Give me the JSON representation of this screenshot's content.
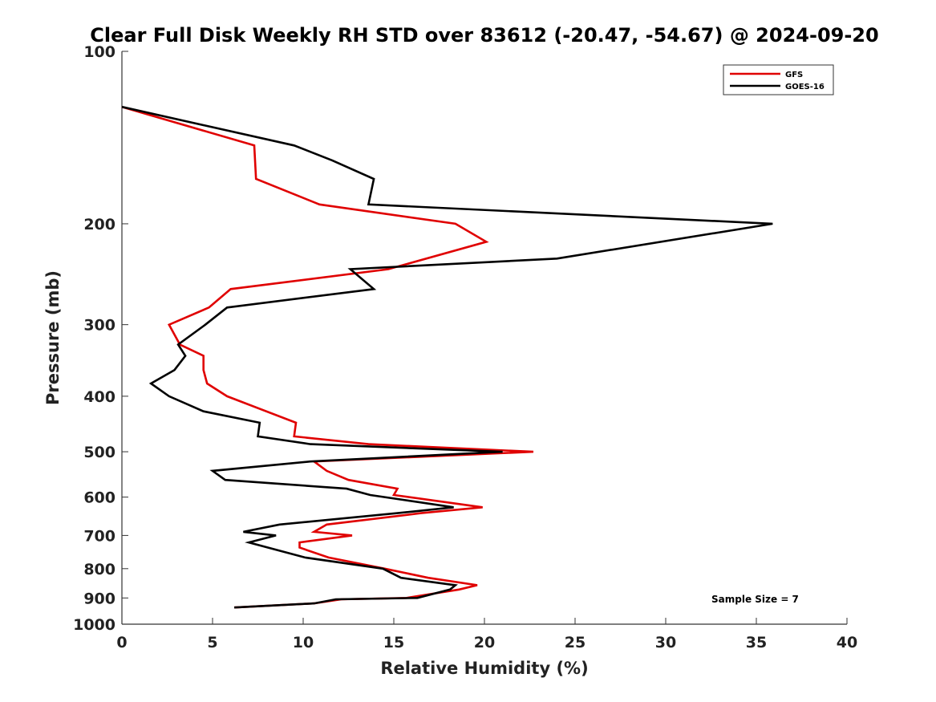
{
  "chart_data": {
    "type": "line",
    "title": "Clear Full Disk Weekly RH STD over 83612 (-20.47, -54.67) @ 2024-09-20",
    "xlabel": "Relative Humidity (%)",
    "ylabel": "Pressure (mb)",
    "xlim": [
      0,
      40
    ],
    "ylim": [
      100,
      1000
    ],
    "y_scale": "log",
    "y_reversed": true,
    "x_ticks": [
      "0",
      "5",
      "10",
      "15",
      "20",
      "25",
      "30",
      "35",
      "40"
    ],
    "y_ticks": [
      "100",
      "200",
      "300",
      "400",
      "500",
      "600",
      "700",
      "800",
      "900",
      "1000"
    ],
    "grid": false,
    "legend_position": "top-right",
    "annotation": "Sample Size = 7",
    "series": [
      {
        "name": "GFS",
        "color": "#e00000",
        "points": [
          [
            0.0,
            125
          ],
          [
            7.3,
            146
          ],
          [
            7.4,
            167
          ],
          [
            10.9,
            185
          ],
          [
            18.4,
            200
          ],
          [
            20.1,
            215
          ],
          [
            14.7,
            240
          ],
          [
            6.0,
            260
          ],
          [
            4.8,
            280
          ],
          [
            2.6,
            300
          ],
          [
            3.2,
            325
          ],
          [
            4.5,
            340
          ],
          [
            4.5,
            360
          ],
          [
            4.7,
            380
          ],
          [
            5.8,
            400
          ],
          [
            9.6,
            445
          ],
          [
            9.5,
            470
          ],
          [
            13.6,
            485
          ],
          [
            22.7,
            500
          ],
          [
            10.6,
            520
          ],
          [
            11.3,
            540
          ],
          [
            12.5,
            560
          ],
          [
            15.2,
            580
          ],
          [
            15.0,
            595
          ],
          [
            19.9,
            625
          ],
          [
            16.5,
            640
          ],
          [
            11.3,
            670
          ],
          [
            10.6,
            690
          ],
          [
            12.7,
            700
          ],
          [
            9.8,
            720
          ],
          [
            9.8,
            735
          ],
          [
            11.4,
            765
          ],
          [
            14.5,
            800
          ],
          [
            16.9,
            830
          ],
          [
            19.6,
            855
          ],
          [
            18.6,
            870
          ],
          [
            15.7,
            900
          ],
          [
            12.1,
            905
          ],
          [
            10.6,
            920
          ],
          [
            6.2,
            935
          ]
        ]
      },
      {
        "name": "GOES-16",
        "color": "#000000",
        "points": [
          [
            0.0,
            125
          ],
          [
            9.5,
            146
          ],
          [
            11.6,
            155
          ],
          [
            13.9,
            167
          ],
          [
            13.6,
            185
          ],
          [
            35.9,
            200
          ],
          [
            24.0,
            230
          ],
          [
            12.6,
            240
          ],
          [
            13.9,
            260
          ],
          [
            5.8,
            280
          ],
          [
            4.6,
            300
          ],
          [
            3.1,
            325
          ],
          [
            3.5,
            340
          ],
          [
            2.9,
            360
          ],
          [
            1.6,
            380
          ],
          [
            2.6,
            400
          ],
          [
            4.5,
            425
          ],
          [
            7.6,
            445
          ],
          [
            7.5,
            470
          ],
          [
            10.4,
            485
          ],
          [
            21.0,
            500
          ],
          [
            10.4,
            520
          ],
          [
            5.0,
            540
          ],
          [
            5.7,
            560
          ],
          [
            12.4,
            580
          ],
          [
            13.7,
            595
          ],
          [
            18.3,
            625
          ],
          [
            15.2,
            640
          ],
          [
            8.7,
            670
          ],
          [
            6.7,
            690
          ],
          [
            8.5,
            700
          ],
          [
            7.0,
            720
          ],
          [
            10.1,
            765
          ],
          [
            14.4,
            800
          ],
          [
            15.4,
            830
          ],
          [
            18.4,
            855
          ],
          [
            18.1,
            870
          ],
          [
            16.3,
            900
          ],
          [
            11.8,
            905
          ],
          [
            10.6,
            920
          ],
          [
            6.2,
            935
          ]
        ]
      }
    ]
  }
}
